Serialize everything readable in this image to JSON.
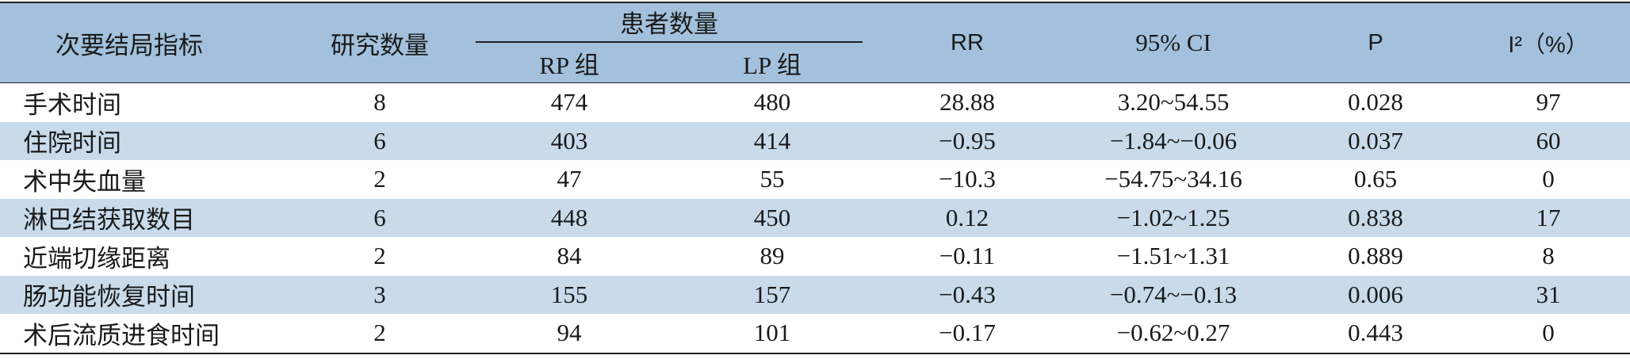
{
  "table": {
    "header": {
      "cells": [
        "次要结局指标",
        "研究数量",
        "RR",
        "95% CI",
        "P",
        "I²（%）"
      ],
      "group": "患者数量",
      "subcells": [
        "RP 组",
        "LP 组"
      ]
    },
    "rows": [
      [
        "手术时间",
        "8",
        "474",
        "480",
        "28.88",
        "3.20~54.55",
        "0.028",
        "97"
      ],
      [
        "住院时间",
        "6",
        "403",
        "414",
        "−0.95",
        "−1.84~−0.06",
        "0.037",
        "60"
      ],
      [
        "术中失血量",
        "2",
        "47",
        "55",
        "−10.3",
        "−54.75~34.16",
        "0.65",
        "0"
      ],
      [
        "淋巴结获取数目",
        "6",
        "448",
        "450",
        "0.12",
        "−1.02~1.25",
        "0.838",
        "17"
      ],
      [
        "近端切缘距离",
        "2",
        "84",
        "89",
        "−0.11",
        "−1.51~1.31",
        "0.889",
        "8"
      ],
      [
        "肠功能恢复时间",
        "3",
        "155",
        "157",
        "−0.43",
        "−0.74~−0.13",
        "0.006",
        "31"
      ],
      [
        "术后流质进食时间",
        "2",
        "94",
        "101",
        "−0.17",
        "−0.62~0.27",
        "0.443",
        "0"
      ]
    ]
  }
}
